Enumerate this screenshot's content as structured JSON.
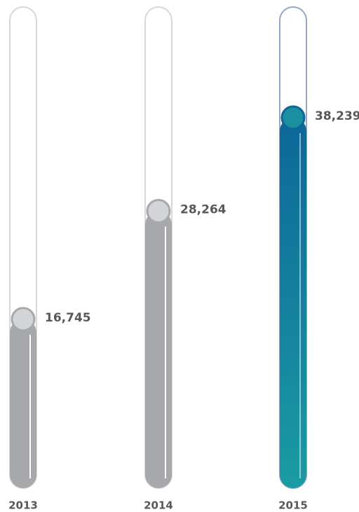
{
  "chart_data": {
    "type": "bar",
    "categories": [
      "2013",
      "2014",
      "2015"
    ],
    "values": [
      16745,
      28264,
      38239
    ],
    "value_labels": [
      "16,745",
      "28,264",
      "38,239"
    ],
    "colors": [
      "#a7a8ab",
      "#a7a8ab",
      "#1a8fa0"
    ]
  }
}
